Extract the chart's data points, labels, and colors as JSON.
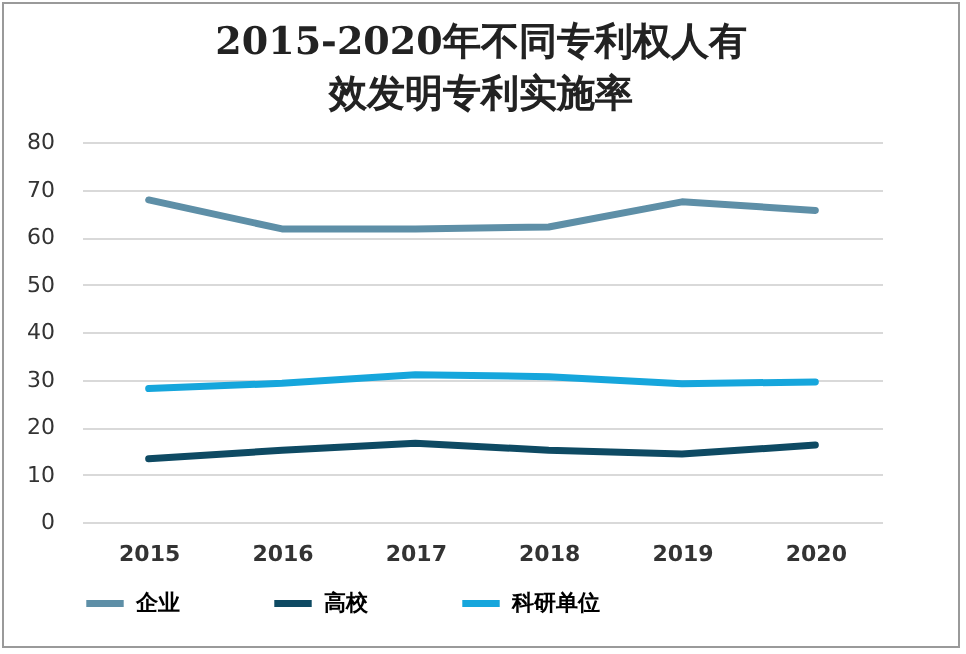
{
  "chart_data": {
    "type": "line",
    "title": "2015-2020年不同专利权人有效发明专利实施率",
    "categories": [
      "2015",
      "2016",
      "2017",
      "2018",
      "2019",
      "2020"
    ],
    "series": [
      {
        "name": "企业",
        "color": "#5e8fa7",
        "values": [
          67.8,
          61.7,
          61.7,
          62.1,
          67.4,
          65.6
        ]
      },
      {
        "name": "高校",
        "color": "#0e4a63",
        "values": [
          13.3,
          15.1,
          16.6,
          15.1,
          14.3,
          16.2
        ]
      },
      {
        "name": "科研单位",
        "color": "#16a6dc",
        "values": [
          28.1,
          29.2,
          31.0,
          30.6,
          29.1,
          29.5
        ]
      }
    ],
    "ylim": [
      0,
      80
    ],
    "yticks": [
      0,
      10,
      20,
      30,
      40,
      50,
      60,
      70,
      80
    ],
    "grid": "y",
    "legend": "bottom",
    "marker": "none",
    "line_style": "solid"
  }
}
